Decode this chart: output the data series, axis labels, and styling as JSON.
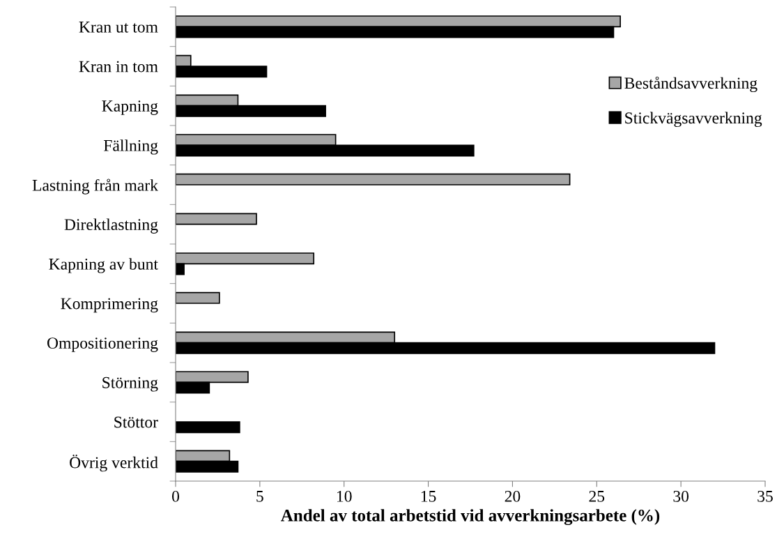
{
  "chart_data": {
    "type": "bar",
    "orientation": "horizontal",
    "xlabel": "Andel av total arbetstid vid avverkningsarbete (%)",
    "categories": [
      "Kran ut tom",
      "Kran in tom",
      "Kapning",
      "Fällning",
      "Lastning från mark",
      "Direktlastning",
      "Kapning av bunt",
      "Komprimering",
      "Ompositionering",
      "Störning",
      "Stöttor",
      "Övrig verktid"
    ],
    "series": [
      {
        "name": "Beståndsavverkning",
        "color": "#a6a6a6",
        "values": [
          26.4,
          0.9,
          3.7,
          9.5,
          23.4,
          4.8,
          8.2,
          2.6,
          13.0,
          4.3,
          null,
          3.2
        ]
      },
      {
        "name": "Stickvägsavverkning",
        "color": "#000000",
        "values": [
          26.0,
          5.4,
          8.9,
          17.7,
          null,
          null,
          0.5,
          null,
          32.0,
          2.0,
          3.8,
          3.7
        ]
      }
    ],
    "xlim": [
      0,
      35
    ],
    "xticks": [
      0,
      5,
      10,
      15,
      20,
      25,
      30,
      35
    ],
    "grid": false,
    "legend": "right"
  }
}
